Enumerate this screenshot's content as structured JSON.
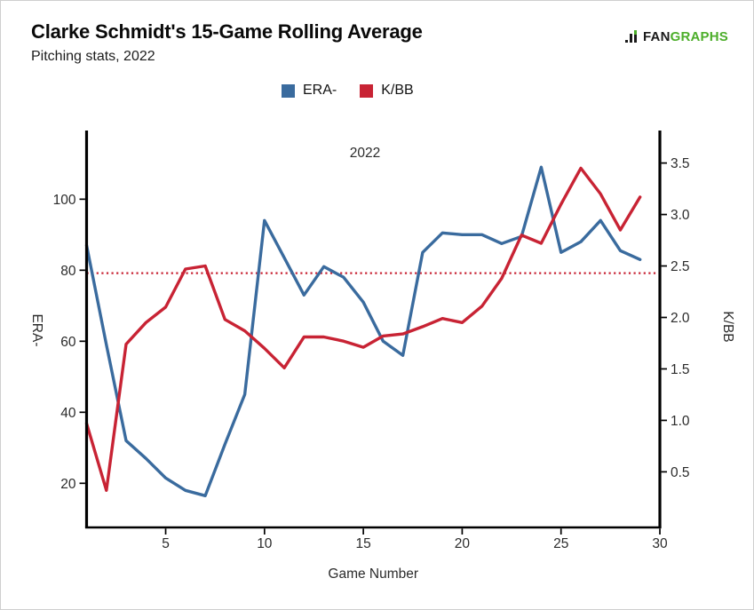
{
  "header": {
    "title": "Clarke Schmidt's 15-Game Rolling Average",
    "subtitle": "Pitching stats, 2022"
  },
  "logo": {
    "prefix": "FAN",
    "suffix": "GRAPHS",
    "prefix_color": "#1a1a1a",
    "suffix_color": "#4CAE2A"
  },
  "legend": {
    "items": [
      {
        "label": "ERA-",
        "color": "#3A6B9E"
      },
      {
        "label": "K/BB",
        "color": "#C82334"
      }
    ]
  },
  "chart_data": {
    "type": "line",
    "title": "Clarke Schmidt's 15-Game Rolling Average",
    "subtitle": "Pitching stats, 2022",
    "annotation": "2022",
    "annotation_color": "#8c8c8c",
    "x": [
      1,
      2,
      3,
      4,
      5,
      6,
      7,
      8,
      9,
      10,
      11,
      12,
      13,
      14,
      15,
      16,
      17,
      18,
      19,
      20,
      21,
      22,
      23,
      24,
      25,
      26,
      27,
      28,
      29
    ],
    "x_axis": {
      "label": "Game Number",
      "ticks": [
        5,
        10,
        15,
        20,
        25,
        30
      ],
      "range": [
        1,
        30
      ]
    },
    "left_axis": {
      "label": "ERA-",
      "ticks": [
        20,
        40,
        60,
        80,
        100
      ],
      "range": [
        7.5,
        118.3
      ]
    },
    "right_axis": {
      "label": "K/BB",
      "ticks": [
        0.5,
        1.0,
        1.5,
        2.0,
        2.5,
        3.0,
        3.5
      ],
      "range": [
        0,
        3.78
      ]
    },
    "reference_line": {
      "axis": "right",
      "value": 2.43,
      "color": "#C82334",
      "style": "dotted"
    },
    "legend_position": "top",
    "grid": false,
    "series": [
      {
        "name": "ERA-",
        "axis": "left",
        "color": "#3A6B9E",
        "values": [
          87,
          59,
          32,
          27,
          21.5,
          18,
          16.5,
          31,
          45,
          94,
          83.5,
          73,
          81,
          78,
          71,
          60,
          56,
          85,
          90.5,
          90,
          90,
          87.5,
          89.5,
          109,
          85,
          88,
          94,
          85.5,
          83
        ]
      },
      {
        "name": "K/BB",
        "axis": "right",
        "color": "#C82334",
        "values": [
          0.97,
          0.32,
          1.74,
          1.95,
          2.1,
          2.47,
          2.5,
          1.98,
          1.87,
          1.7,
          1.51,
          1.81,
          1.81,
          1.77,
          1.71,
          1.82,
          1.84,
          1.91,
          1.99,
          1.95,
          2.11,
          2.38,
          2.8,
          2.72,
          3.1,
          3.45,
          3.2,
          2.85,
          3.17
        ]
      }
    ]
  }
}
